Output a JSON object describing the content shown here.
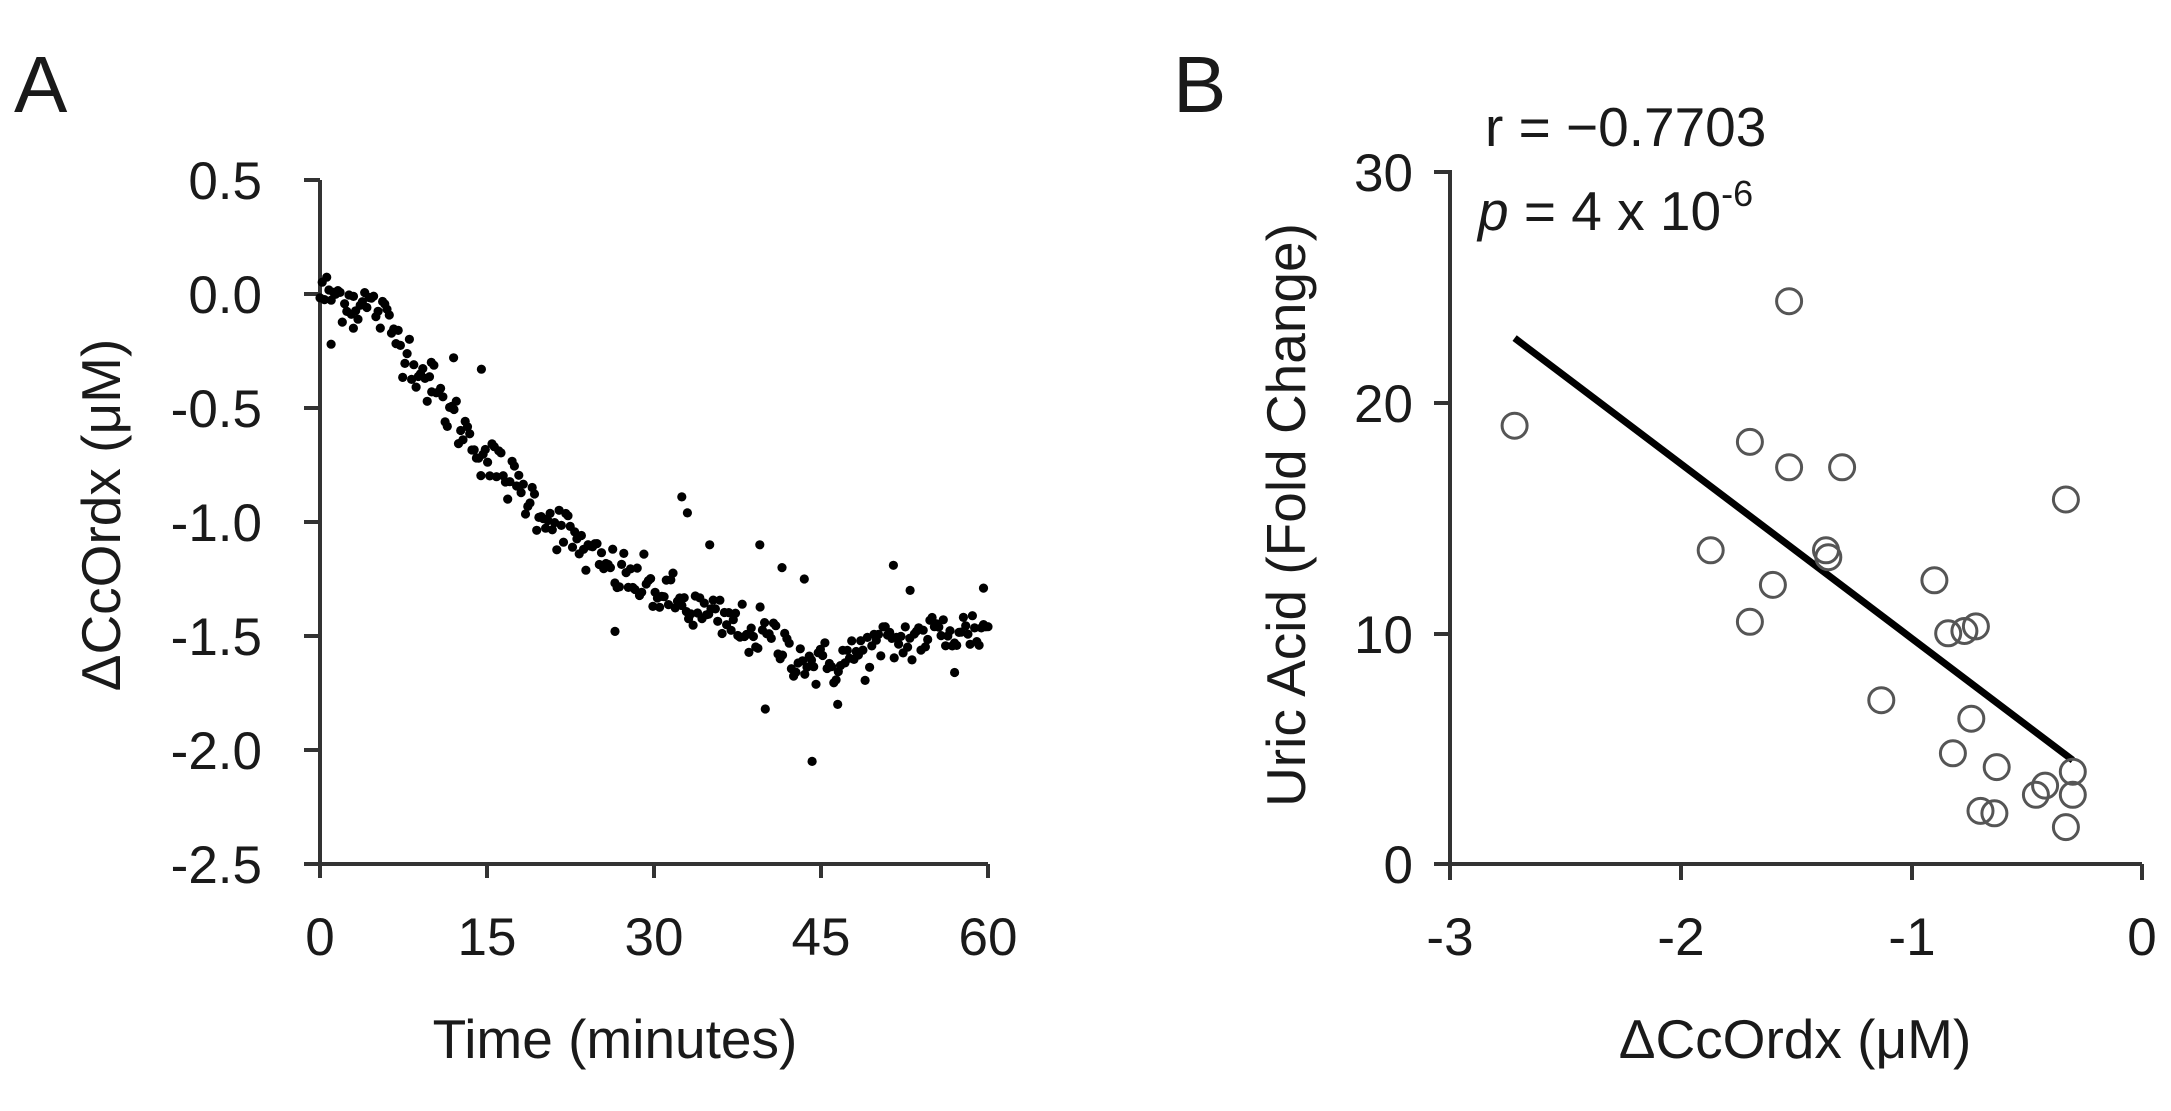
{
  "colors": {
    "ink": "#000000",
    "axis": "#333333",
    "marker_edge": "#555555",
    "background": "#ffffff"
  },
  "chart_data": [
    {
      "type": "scatter",
      "panel_label": "A",
      "title": "",
      "xlabel": "Time (minutes)",
      "ylabel": "ΔCcOrdx (μM)",
      "xlim": [
        0,
        60
      ],
      "ylim": [
        -2.5,
        0.5
      ],
      "xticks": [
        0,
        15,
        30,
        45,
        60
      ],
      "xtick_labels": [
        "0",
        "15",
        "30",
        "45",
        "60"
      ],
      "yticks": [
        0.5,
        0.0,
        -0.5,
        -1.0,
        -1.5,
        -2.0,
        -2.5
      ],
      "ytick_labels": [
        "0.5",
        "0.0",
        "-0.5",
        "-1.0",
        "-1.5",
        "-2.0",
        "-2.5"
      ],
      "marker": "filled-circle",
      "n_points": 300,
      "trend_knots": [
        [
          0,
          0.0
        ],
        [
          2,
          -0.01
        ],
        [
          5,
          -0.06
        ],
        [
          8,
          -0.26
        ],
        [
          11,
          -0.48
        ],
        [
          15,
          -0.72
        ],
        [
          20,
          -0.95
        ],
        [
          25,
          -1.18
        ],
        [
          30,
          -1.3
        ],
        [
          35,
          -1.42
        ],
        [
          40,
          -1.5
        ],
        [
          45,
          -1.64
        ],
        [
          50,
          -1.55
        ],
        [
          55,
          -1.49
        ],
        [
          60,
          -1.47
        ]
      ],
      "noise_sd": 0.055,
      "outliers": [
        [
          1,
          -0.22
        ],
        [
          3,
          -0.15
        ],
        [
          10,
          -0.3
        ],
        [
          12,
          -0.28
        ],
        [
          14.5,
          -0.33
        ],
        [
          26.5,
          -1.48
        ],
        [
          32.5,
          -0.89
        ],
        [
          33,
          -0.96
        ],
        [
          35,
          -1.1
        ],
        [
          39.5,
          -1.1
        ],
        [
          40,
          -1.82
        ],
        [
          41.5,
          -1.2
        ],
        [
          43.5,
          -1.25
        ],
        [
          44.2,
          -2.05
        ],
        [
          46.5,
          -1.8
        ],
        [
          51.5,
          -1.19
        ],
        [
          53,
          -1.3
        ],
        [
          57,
          -1.66
        ],
        [
          59.6,
          -1.29
        ]
      ]
    },
    {
      "type": "scatter",
      "panel_label": "B",
      "title": "",
      "xlabel": "ΔCcOrdx (μM)",
      "ylabel": "Uric Acid (Fold Change)",
      "xlim": [
        -3,
        0
      ],
      "ylim": [
        0,
        30
      ],
      "xticks": [
        -3,
        -2,
        -1,
        0
      ],
      "xtick_labels": [
        "-3",
        "-2",
        "-1",
        "0"
      ],
      "yticks": [
        0,
        10,
        20,
        30
      ],
      "ytick_labels": [
        "0",
        "10",
        "20",
        "30"
      ],
      "marker": "open-circle",
      "annotations": {
        "r_text": "r = −0.7703",
        "p_symbol": "p",
        "p_text": " = 4 x 10",
        "p_exponent": "-6"
      },
      "points": [
        {
          "x": -2.72,
          "y": 19.0
        },
        {
          "x": -1.53,
          "y": 24.4
        },
        {
          "x": -1.7,
          "y": 18.3
        },
        {
          "x": -1.53,
          "y": 17.2
        },
        {
          "x": -1.3,
          "y": 17.2
        },
        {
          "x": -1.87,
          "y": 13.6
        },
        {
          "x": -1.37,
          "y": 13.6
        },
        {
          "x": -1.36,
          "y": 13.3
        },
        {
          "x": -1.6,
          "y": 12.1
        },
        {
          "x": -1.7,
          "y": 10.5
        },
        {
          "x": -0.9,
          "y": 12.3
        },
        {
          "x": -0.84,
          "y": 10.0
        },
        {
          "x": -0.77,
          "y": 10.1
        },
        {
          "x": -0.72,
          "y": 10.3
        },
        {
          "x": -0.33,
          "y": 15.8
        },
        {
          "x": -1.13,
          "y": 7.1
        },
        {
          "x": -0.74,
          "y": 6.3
        },
        {
          "x": -0.82,
          "y": 4.8
        },
        {
          "x": -0.63,
          "y": 4.2
        },
        {
          "x": -0.3,
          "y": 4.0
        },
        {
          "x": -0.42,
          "y": 3.4
        },
        {
          "x": -0.46,
          "y": 3.0
        },
        {
          "x": -0.3,
          "y": 3.0
        },
        {
          "x": -0.7,
          "y": 2.3
        },
        {
          "x": -0.64,
          "y": 2.2
        },
        {
          "x": -0.33,
          "y": 1.6
        }
      ],
      "fit_line": {
        "x": [
          -2.72,
          -0.3
        ],
        "y": [
          22.8,
          4.5
        ]
      }
    }
  ]
}
